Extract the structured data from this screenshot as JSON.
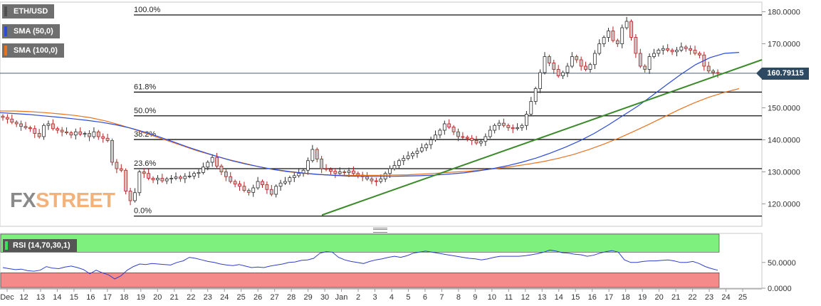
{
  "legend": {
    "pair": {
      "label": "ETH/USD",
      "color": "#4f4f4f"
    },
    "sma50": {
      "label": "SMA (50,0)",
      "color": "#2b4bd9"
    },
    "sma100": {
      "label": "SMA (100,0)",
      "color": "#e8731f"
    }
  },
  "rsi_indicator": {
    "label": "RSI (14,70,30,1)",
    "overbought_color": "#7ef07e",
    "oversold_color": "#f58a8a",
    "line_color": "#2f3fc9"
  },
  "last_price": "160.79115",
  "watermark": {
    "part1": "FX",
    "part2": "STREET"
  },
  "chart_data": {
    "type": "candlestick",
    "symbol": "ETH/USD",
    "x_tick_labels": [
      "Dec",
      "12",
      "13",
      "14",
      "15",
      "16",
      "17",
      "18",
      "19",
      "20",
      "21",
      "22",
      "23",
      "24",
      "25",
      "26",
      "27",
      "28",
      "29",
      "30",
      "Jan",
      "2",
      "3",
      "4",
      "5",
      "6",
      "7",
      "8",
      "9",
      "10",
      "11",
      "12",
      "13",
      "14",
      "15",
      "16",
      "17",
      "18",
      "19",
      "20",
      "21",
      "22",
      "23",
      "24",
      "25"
    ],
    "y_ticks": [
      "120.0000",
      "130.0000",
      "140.0000",
      "150.0000",
      "160.0000",
      "170.0000",
      "180.0000"
    ],
    "y_range": [
      113,
      183
    ],
    "fibonacci_levels": [
      {
        "label": "100.0%",
        "value": 179.0
      },
      {
        "label": "61.8%",
        "value": 154.9
      },
      {
        "label": "50.0%",
        "value": 147.5
      },
      {
        "label": "38.2%",
        "value": 140.1
      },
      {
        "label": "23.6%",
        "value": 131.0
      },
      {
        "label": "0.0%",
        "value": 116.2
      }
    ],
    "last_price": 160.79115,
    "close": [
      147,
      146.5,
      145.5,
      145,
      144.2,
      143.8,
      143.5,
      142,
      141,
      144.5,
      145,
      143.5,
      143,
      142.5,
      142.2,
      141.5,
      142.5,
      141.8,
      142,
      141,
      142.5,
      141,
      140.5,
      139.8,
      133,
      131,
      130.5,
      124,
      121,
      123.5,
      130,
      129.5,
      128,
      127.5,
      128,
      127.2,
      127.8,
      128,
      128.4,
      127.9,
      128.6,
      128.7,
      129.5,
      129.8,
      131.5,
      133,
      134.5,
      131.8,
      130,
      128.5,
      127,
      126.2,
      125.5,
      124.2,
      123.6,
      125,
      127,
      126,
      124.5,
      123,
      125.5,
      126.5,
      127,
      128.2,
      128.8,
      129.5,
      130.5,
      133.5,
      137,
      134,
      131,
      130.8,
      130.2,
      129.5,
      130,
      129.8,
      130.3,
      129.5,
      129,
      128.5,
      127.8,
      127.2,
      127,
      127.8,
      129.5,
      131,
      132,
      133.5,
      134.2,
      135,
      135.8,
      136.5,
      137.5,
      138.5,
      140,
      141.5,
      143,
      145,
      144,
      142.5,
      141,
      140.8,
      140.5,
      139.8,
      139,
      139.5,
      141,
      143,
      144.5,
      145.2,
      144.5,
      143.8,
      143.5,
      143.8,
      144.5,
      148,
      152,
      156,
      161,
      166,
      164,
      162,
      160,
      161,
      163,
      166,
      165,
      163,
      162,
      163.5,
      167,
      170,
      172,
      174,
      171,
      170,
      175,
      177,
      172,
      167,
      163,
      162,
      166,
      167,
      168,
      168.5,
      168,
      167.5,
      168,
      169,
      168.5,
      168,
      167,
      166.5,
      163,
      161.5,
      161,
      160.8
    ],
    "sma50": [
      148.5,
      148.2,
      147.9,
      147.5,
      147.1,
      146.6,
      146.1,
      145.5,
      144.7,
      143.7,
      142.4,
      140.9,
      139.3,
      137.7,
      136.2,
      134.8,
      133.5,
      132.4,
      131.5,
      130.7,
      130.1,
      129.6,
      129.2,
      128.9,
      128.7,
      128.6,
      128.6,
      128.6,
      128.7,
      128.8,
      129,
      129.3,
      129.7,
      130.3,
      131,
      131.9,
      133,
      134.3,
      135.9,
      137.7,
      139.7,
      142,
      144.7,
      147.6,
      150.5,
      153.8,
      157.2,
      160.5,
      163.5,
      165.7,
      167,
      167.3
    ],
    "sma100": [
      149,
      149,
      148.8,
      148.5,
      148.1,
      147.6,
      146.9,
      145.9,
      144.6,
      143.1,
      141.5,
      139.9,
      138.3,
      136.7,
      135.3,
      134,
      132.9,
      131.8,
      130.8,
      130.1,
      129.6,
      129.2,
      129,
      128.9,
      128.9,
      128.9,
      129,
      129.1,
      129.3,
      129.6,
      129.9,
      130.2,
      130.6,
      131.1,
      131.7,
      132.4,
      133.2,
      134.2,
      135.4,
      136.9,
      138.6,
      140.5,
      142.6,
      144.8,
      147.1,
      149.4,
      151.5,
      153.3,
      154.8,
      156
    ],
    "trendline": {
      "start": 116.5,
      "end": 165.0
    },
    "rsi": {
      "y_ticks": [
        "0.0000",
        "50.0000"
      ],
      "overbought": 70,
      "oversold": 30,
      "values": [
        40,
        38,
        36,
        37,
        34,
        33,
        35,
        42,
        39,
        38,
        41,
        43,
        40,
        36,
        28,
        35,
        30,
        26,
        18,
        24,
        35,
        42,
        47,
        46,
        48,
        47,
        46,
        45,
        50,
        53,
        60,
        58,
        55,
        52,
        50,
        47,
        45,
        44,
        46,
        43,
        40,
        41,
        40,
        43,
        45,
        47,
        50,
        51,
        54,
        55,
        58,
        68,
        71,
        70,
        60,
        55,
        52,
        50,
        48,
        52,
        55,
        57,
        60,
        62,
        60,
        63,
        68,
        70,
        72,
        70,
        68,
        66,
        64,
        62,
        60,
        58,
        57,
        55,
        57,
        60,
        62,
        62,
        62,
        62,
        63,
        65,
        67,
        70,
        74,
        72,
        69,
        68,
        66,
        65,
        62,
        64,
        68,
        71,
        73,
        70,
        55,
        50,
        50,
        52,
        53,
        53,
        54,
        55,
        53,
        50,
        50,
        52,
        48,
        42,
        38,
        35
      ]
    }
  }
}
